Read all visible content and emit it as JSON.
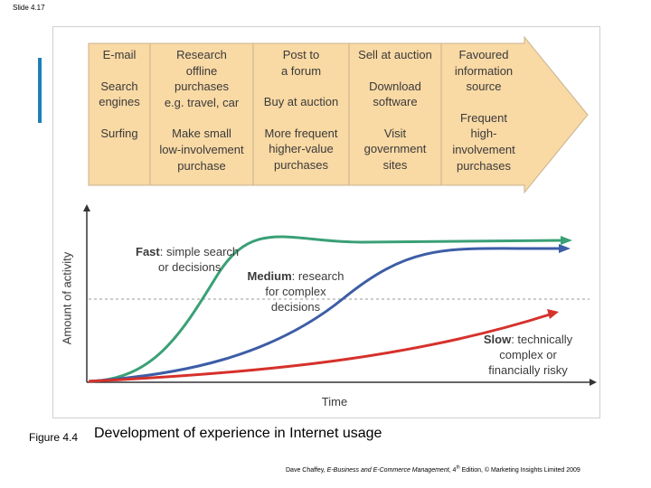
{
  "slide_label": "Slide 4.17",
  "colors": {
    "banner_fill": "#f9d9a4",
    "banner_stroke": "#c9b38f",
    "fast": "#3aa076",
    "medium": "#3d5da6",
    "slow": "#d6312b",
    "accent": "#1f7fb8"
  },
  "banner": {
    "columns": [
      {
        "groups": [
          [
            "E-mail"
          ],
          [
            "Search",
            "engines"
          ],
          [
            "Surfing"
          ]
        ]
      },
      {
        "groups": [
          [
            "Research",
            "offline",
            "purchases",
            "e.g. travel, car"
          ],
          [
            "Make small",
            "low-involvement",
            "purchase"
          ]
        ]
      },
      {
        "groups": [
          [
            "Post to",
            "a forum"
          ],
          [
            "Buy at auction"
          ],
          [
            "More frequent",
            "higher-value",
            "purchases"
          ]
        ]
      },
      {
        "groups": [
          [
            "Sell at auction"
          ],
          [
            "Download",
            "software"
          ],
          [
            "Visit",
            "government",
            "sites"
          ]
        ]
      },
      {
        "groups": [
          [
            "Favoured",
            "information",
            "source"
          ],
          [
            "Frequent",
            "high-",
            "involvement",
            "purchases"
          ]
        ]
      }
    ]
  },
  "chart": {
    "y_axis_label": "Amount of activity",
    "x_axis_label": "Time",
    "series": {
      "fast": {
        "name": "Fast",
        "desc_line1": ": simple search",
        "desc_line2": "or decisions"
      },
      "medium": {
        "name": "Medium",
        "desc_line1": ": research",
        "desc_line2": "for complex",
        "desc_line3": "decisions"
      },
      "slow": {
        "name": "Slow",
        "desc_line1": ": technically",
        "desc_line2": "complex or",
        "desc_line3": "financially risky"
      }
    }
  },
  "figure": {
    "number": "Figure 4.4",
    "title": "Development of experience in Internet usage"
  },
  "credit": {
    "author": "Dave Chaffey, ",
    "book": "E-Business and E-Commerce Management",
    "edition_pre": ", 4",
    "edition_sup": "th",
    "edition_post": " Edition, © Marketing Insights Limited 2009"
  }
}
